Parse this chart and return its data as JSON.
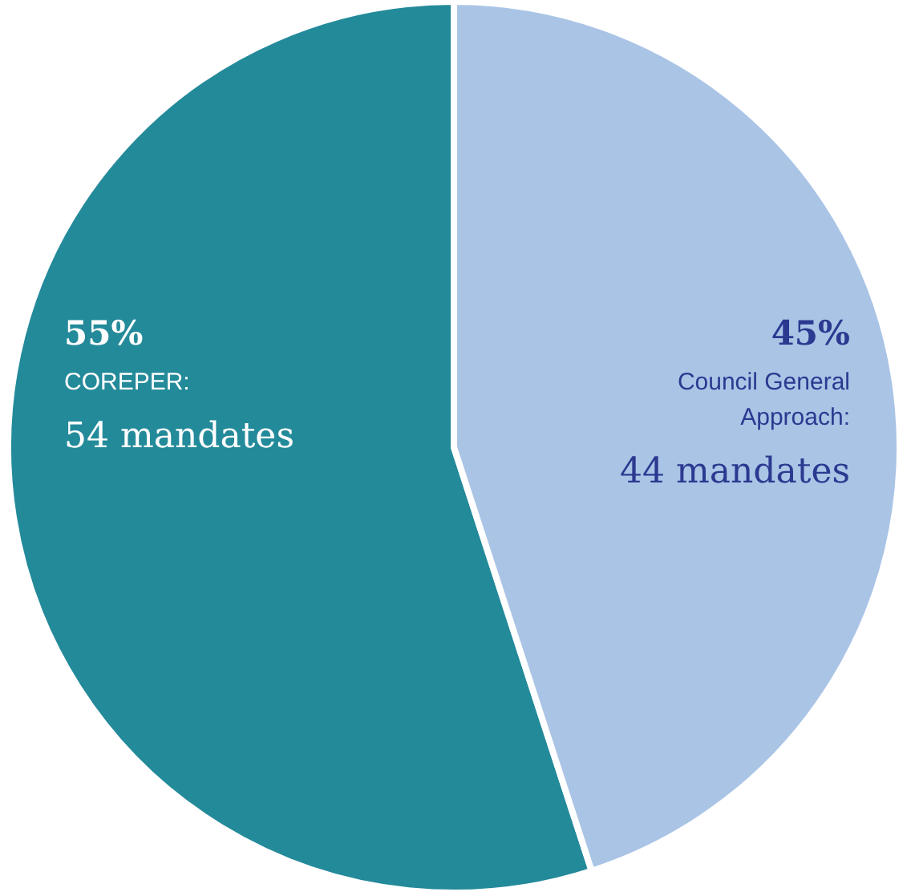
{
  "chart_data": {
    "type": "pie",
    "categories": [
      "COREPER: 54 mandates",
      "Council General Approach: 44 mandates"
    ],
    "values": [
      55,
      45
    ],
    "colors": [
      "#238a9a",
      "#aac4e6"
    ],
    "value_labels": [
      "55%",
      "45%"
    ]
  }
}
